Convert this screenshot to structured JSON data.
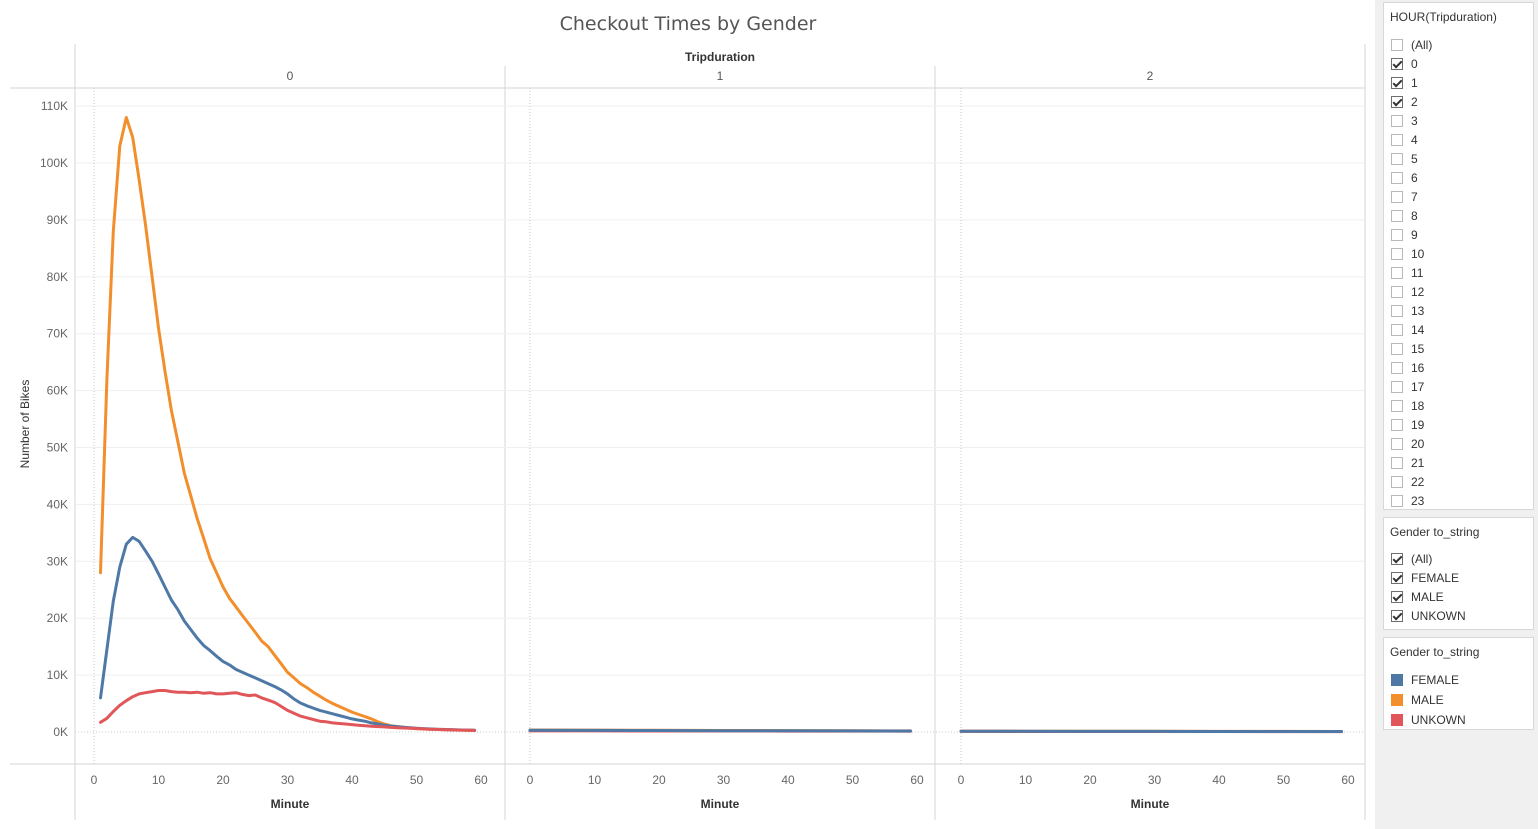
{
  "chart_data": {
    "type": "line",
    "title": "Checkout Times by Gender",
    "column_header": "Tripduration",
    "ylabel": "Number of Bikes",
    "xlabel": "Minute",
    "ylim": [
      0,
      115000
    ],
    "xlim": [
      0,
      62
    ],
    "y_ticks": [
      "0K",
      "10K",
      "20K",
      "30K",
      "40K",
      "50K",
      "60K",
      "70K",
      "80K",
      "90K",
      "100K",
      "110K"
    ],
    "x_ticks": [
      "0",
      "10",
      "20",
      "30",
      "40",
      "50",
      "60"
    ],
    "grid": true,
    "panes": [
      {
        "label": "0",
        "series": [
          {
            "name": "MALE",
            "color": "#F28E2B",
            "x": [
              1,
              2,
              3,
              4,
              5,
              6,
              7,
              8,
              9,
              10,
              11,
              12,
              13,
              14,
              15,
              16,
              17,
              18,
              19,
              20,
              21,
              22,
              23,
              24,
              25,
              26,
              27,
              28,
              29,
              30,
              31,
              32,
              33,
              34,
              35,
              36,
              37,
              38,
              39,
              40,
              41,
              42,
              43,
              44,
              45,
              46,
              47,
              48,
              49,
              50,
              51,
              52,
              53,
              54,
              55,
              56,
              57,
              58,
              59
            ],
            "y": [
              28000,
              62000,
              88000,
              103000,
              108000,
              104500,
              97000,
              89000,
              80000,
              71000,
              63500,
              56500,
              51000,
              45500,
              41500,
              37500,
              34000,
              30500,
              28000,
              25500,
              23500,
              22000,
              20500,
              19000,
              17500,
              16000,
              15000,
              13500,
              12000,
              10500,
              9500,
              8500,
              7800,
              7000,
              6300,
              5600,
              5000,
              4500,
              4000,
              3500,
              3100,
              2700,
              2300,
              1800,
              1400,
              1100,
              950,
              800,
              700,
              600,
              550,
              500,
              450,
              420,
              390,
              360,
              330,
              300,
              280
            ]
          },
          {
            "name": "FEMALE",
            "color": "#4E79A7",
            "x": [
              1,
              2,
              3,
              4,
              5,
              6,
              7,
              8,
              9,
              10,
              11,
              12,
              13,
              14,
              15,
              16,
              17,
              18,
              19,
              20,
              21,
              22,
              23,
              24,
              25,
              26,
              27,
              28,
              29,
              30,
              31,
              32,
              33,
              34,
              35,
              36,
              37,
              38,
              39,
              40,
              41,
              42,
              43,
              44,
              45,
              46,
              47,
              48,
              49,
              50,
              51,
              52,
              53,
              54,
              55,
              56,
              57,
              58,
              59
            ],
            "y": [
              6000,
              14500,
              23000,
              29000,
              33000,
              34200,
              33500,
              31800,
              30000,
              27800,
              25500,
              23200,
              21500,
              19500,
              18000,
              16500,
              15200,
              14300,
              13300,
              12400,
              11800,
              11000,
              10500,
              10000,
              9500,
              9000,
              8500,
              8000,
              7400,
              6700,
              5800,
              5100,
              4600,
              4200,
              3800,
              3500,
              3200,
              2900,
              2600,
              2300,
              2100,
              1900,
              1600,
              1400,
              1200,
              1050,
              950,
              850,
              750,
              650,
              600,
              550,
              500,
              450,
              420,
              390,
              360,
              330,
              300
            ]
          },
          {
            "name": "UNKOWN",
            "color": "#E15759",
            "x": [
              1,
              2,
              3,
              4,
              5,
              6,
              7,
              8,
              9,
              10,
              11,
              12,
              13,
              14,
              15,
              16,
              17,
              18,
              19,
              20,
              21,
              22,
              23,
              24,
              25,
              26,
              27,
              28,
              29,
              30,
              31,
              32,
              33,
              34,
              35,
              36,
              37,
              38,
              39,
              40,
              41,
              42,
              43,
              44,
              45,
              46,
              47,
              48,
              49,
              50,
              51,
              52,
              53,
              54,
              55,
              56,
              57,
              58,
              59
            ],
            "y": [
              1700,
              2400,
              3600,
              4700,
              5500,
              6200,
              6700,
              6900,
              7100,
              7300,
              7300,
              7100,
              7000,
              7000,
              6900,
              7000,
              6800,
              6900,
              6700,
              6700,
              6800,
              6900,
              6600,
              6400,
              6500,
              6000,
              5600,
              5200,
              4500,
              3800,
              3300,
              2800,
              2500,
              2200,
              1900,
              1800,
              1600,
              1500,
              1400,
              1300,
              1200,
              1100,
              1000,
              950,
              900,
              800,
              750,
              700,
              650,
              600,
              550,
              500,
              450,
              420,
              390,
              360,
              330,
              300,
              280
            ]
          }
        ]
      },
      {
        "label": "1",
        "series": [
          {
            "name": "MALE",
            "color": "#F28E2B",
            "x": [
              0,
              10,
              20,
              30,
              40,
              50,
              59
            ],
            "y": [
              350,
              330,
              300,
              270,
              240,
              220,
              200
            ]
          },
          {
            "name": "UNKOWN",
            "color": "#E15759",
            "x": [
              0,
              10,
              20,
              30,
              40,
              50,
              59
            ],
            "y": [
              200,
              190,
              180,
              170,
              160,
              150,
              140
            ]
          },
          {
            "name": "FEMALE",
            "color": "#4E79A7",
            "x": [
              0,
              10,
              20,
              30,
              40,
              50,
              59
            ],
            "y": [
              300,
              280,
              260,
              230,
              210,
              190,
              170
            ]
          }
        ]
      },
      {
        "label": "2",
        "series": [
          {
            "name": "MALE",
            "color": "#F28E2B",
            "x": [
              0,
              10,
              20,
              30,
              40,
              50,
              59
            ],
            "y": [
              150,
              140,
              130,
              120,
              110,
              100,
              90
            ]
          },
          {
            "name": "UNKOWN",
            "color": "#E15759",
            "x": [
              0,
              10,
              20,
              30,
              40,
              50,
              59
            ],
            "y": [
              100,
              95,
              90,
              85,
              80,
              75,
              70
            ]
          },
          {
            "name": "FEMALE",
            "color": "#4E79A7",
            "x": [
              0,
              10,
              20,
              30,
              40,
              50,
              59
            ],
            "y": [
              130,
              120,
              110,
              100,
              95,
              90,
              85
            ]
          }
        ]
      }
    ]
  },
  "filters": {
    "hour": {
      "title": "HOUR(Tripduration)",
      "items": [
        {
          "label": "(All)",
          "checked": false
        },
        {
          "label": "0",
          "checked": true
        },
        {
          "label": "1",
          "checked": true
        },
        {
          "label": "2",
          "checked": true
        },
        {
          "label": "3",
          "checked": false
        },
        {
          "label": "4",
          "checked": false
        },
        {
          "label": "5",
          "checked": false
        },
        {
          "label": "6",
          "checked": false
        },
        {
          "label": "7",
          "checked": false
        },
        {
          "label": "8",
          "checked": false
        },
        {
          "label": "9",
          "checked": false
        },
        {
          "label": "10",
          "checked": false
        },
        {
          "label": "11",
          "checked": false
        },
        {
          "label": "12",
          "checked": false
        },
        {
          "label": "13",
          "checked": false
        },
        {
          "label": "14",
          "checked": false
        },
        {
          "label": "15",
          "checked": false
        },
        {
          "label": "16",
          "checked": false
        },
        {
          "label": "17",
          "checked": false
        },
        {
          "label": "18",
          "checked": false
        },
        {
          "label": "19",
          "checked": false
        },
        {
          "label": "20",
          "checked": false
        },
        {
          "label": "21",
          "checked": false
        },
        {
          "label": "22",
          "checked": false
        },
        {
          "label": "23",
          "checked": false
        }
      ]
    },
    "gender": {
      "title": "Gender to_string",
      "items": [
        {
          "label": "(All)",
          "checked": true
        },
        {
          "label": "FEMALE",
          "checked": true
        },
        {
          "label": "MALE",
          "checked": true
        },
        {
          "label": "UNKOWN",
          "checked": true
        }
      ]
    }
  },
  "legend": {
    "title": "Gender to_string",
    "items": [
      {
        "label": "FEMALE",
        "color": "#4E79A7"
      },
      {
        "label": "MALE",
        "color": "#F28E2B"
      },
      {
        "label": "UNKOWN",
        "color": "#E15759"
      }
    ]
  }
}
